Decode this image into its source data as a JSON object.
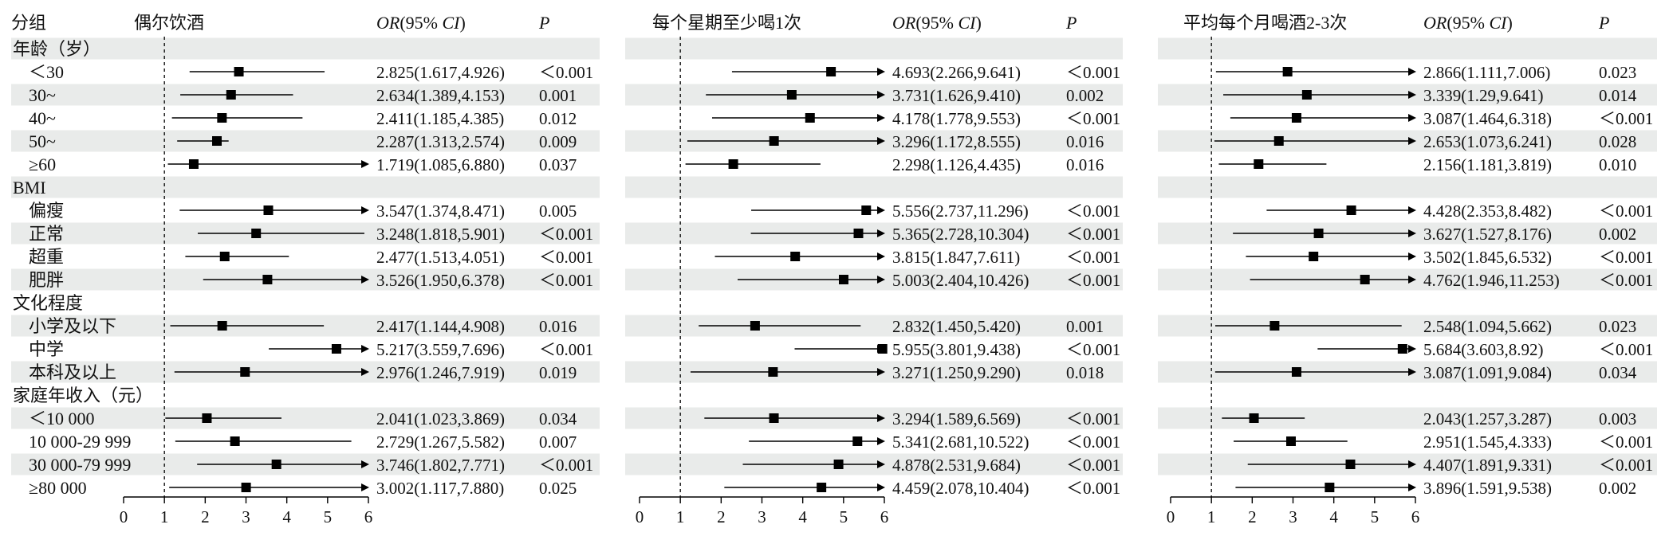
{
  "chart_data": {
    "type": "forest",
    "row_label_header": "分组",
    "reference_line": 1,
    "x_ticks": [
      "0",
      "1",
      "2",
      "3",
      "4",
      "5",
      "6"
    ],
    "xlim": [
      0,
      6
    ],
    "column_headers": {
      "or_prefix": "OR",
      "or_mid": "(95% ",
      "or_ci": "CI",
      "or_suffix": ")",
      "p": "P"
    },
    "rows": [
      {
        "label": "年龄（岁）",
        "type": "group"
      },
      {
        "label": "＜30",
        "type": "item"
      },
      {
        "label": "30~",
        "type": "item"
      },
      {
        "label": "40~",
        "type": "item"
      },
      {
        "label": "50~",
        "type": "item"
      },
      {
        "label": "≥60",
        "type": "item"
      },
      {
        "label": "BMI",
        "type": "group"
      },
      {
        "label": "偏瘦",
        "type": "item"
      },
      {
        "label": "正常",
        "type": "item"
      },
      {
        "label": "超重",
        "type": "item"
      },
      {
        "label": "肥胖",
        "type": "item"
      },
      {
        "label": "文化程度",
        "type": "group"
      },
      {
        "label": "小学及以下",
        "type": "item"
      },
      {
        "label": "中学",
        "type": "item"
      },
      {
        "label": "本科及以上",
        "type": "item"
      },
      {
        "label": "家庭年收入（元）",
        "type": "group"
      },
      {
        "label": "＜10 000",
        "type": "item"
      },
      {
        "label": "10 000-29 999",
        "type": "item"
      },
      {
        "label": "30 000-79 999",
        "type": "item"
      },
      {
        "label": "≥80 000",
        "type": "item"
      }
    ],
    "panels": [
      {
        "title": "偶尔饮酒",
        "estimates": [
          {
            "or": 2.825,
            "lo": 1.617,
            "hi": 4.926,
            "text": "2.825(1.617,4.926)",
            "p": "＜0.001"
          },
          {
            "or": 2.634,
            "lo": 1.389,
            "hi": 4.153,
            "text": "2.634(1.389,4.153)",
            "p": "0.001"
          },
          {
            "or": 2.411,
            "lo": 1.185,
            "hi": 4.385,
            "text": "2.411(1.185,4.385)",
            "p": "0.012"
          },
          {
            "or": 2.287,
            "lo": 1.313,
            "hi": 2.574,
            "text": "2.287(1.313,2.574)",
            "p": "0.009"
          },
          {
            "or": 1.719,
            "lo": 1.085,
            "hi": 6.88,
            "text": "1.719(1.085,6.880)",
            "p": "0.037"
          },
          {
            "or": 3.547,
            "lo": 1.374,
            "hi": 8.471,
            "text": "3.547(1.374,8.471)",
            "p": "0.005"
          },
          {
            "or": 3.248,
            "lo": 1.818,
            "hi": 5.901,
            "text": "3.248(1.818,5.901)",
            "p": "＜0.001"
          },
          {
            "or": 2.477,
            "lo": 1.513,
            "hi": 4.051,
            "text": "2.477(1.513,4.051)",
            "p": "＜0.001"
          },
          {
            "or": 3.526,
            "lo": 1.95,
            "hi": 6.378,
            "text": "3.526(1.950,6.378)",
            "p": "＜0.001"
          },
          {
            "or": 2.417,
            "lo": 1.144,
            "hi": 4.908,
            "text": "2.417(1.144,4.908)",
            "p": "0.016"
          },
          {
            "or": 5.217,
            "lo": 3.559,
            "hi": 7.696,
            "text": "5.217(3.559,7.696)",
            "p": "＜0.001"
          },
          {
            "or": 2.976,
            "lo": 1.246,
            "hi": 7.919,
            "text": "2.976(1.246,7.919)",
            "p": "0.019"
          },
          {
            "or": 2.041,
            "lo": 1.023,
            "hi": 3.869,
            "text": "2.041(1.023,3.869)",
            "p": "0.034"
          },
          {
            "or": 2.729,
            "lo": 1.267,
            "hi": 5.582,
            "text": "2.729(1.267,5.582)",
            "p": "0.007"
          },
          {
            "or": 3.746,
            "lo": 1.802,
            "hi": 7.771,
            "text": "3.746(1.802,7.771)",
            "p": "＜0.001"
          },
          {
            "or": 3.002,
            "lo": 1.117,
            "hi": 7.88,
            "text": "3.002(1.117,7.880)",
            "p": "0.025"
          }
        ]
      },
      {
        "title": "每个星期至少喝1次",
        "estimates": [
          {
            "or": 4.693,
            "lo": 2.266,
            "hi": 9.641,
            "text": "4.693(2.266,9.641)",
            "p": "＜0.001"
          },
          {
            "or": 3.731,
            "lo": 1.626,
            "hi": 9.41,
            "text": "3.731(1.626,9.410)",
            "p": "0.002"
          },
          {
            "or": 4.178,
            "lo": 1.778,
            "hi": 9.553,
            "text": "4.178(1.778,9.553)",
            "p": "＜0.001"
          },
          {
            "or": 3.296,
            "lo": 1.172,
            "hi": 8.555,
            "text": "3.296(1.172,8.555)",
            "p": "0.016"
          },
          {
            "or": 2.298,
            "lo": 1.126,
            "hi": 4.435,
            "text": "2.298(1.126,4.435)",
            "p": "0.016"
          },
          {
            "or": 5.556,
            "lo": 2.737,
            "hi": 11.296,
            "text": "5.556(2.737,11.296)",
            "p": "＜0.001"
          },
          {
            "or": 5.365,
            "lo": 2.728,
            "hi": 10.304,
            "text": "5.365(2.728,10.304)",
            "p": "＜0.001"
          },
          {
            "or": 3.815,
            "lo": 1.847,
            "hi": 7.611,
            "text": "3.815(1.847,7.611)",
            "p": "＜0.001"
          },
          {
            "or": 5.003,
            "lo": 2.404,
            "hi": 10.426,
            "text": "5.003(2.404,10.426)",
            "p": "＜0.001"
          },
          {
            "or": 2.832,
            "lo": 1.45,
            "hi": 5.42,
            "text": "2.832(1.450,5.420)",
            "p": "0.001"
          },
          {
            "or": 5.955,
            "lo": 3.801,
            "hi": 9.438,
            "text": "5.955(3.801,9.438)",
            "p": "＜0.001"
          },
          {
            "or": 3.271,
            "lo": 1.25,
            "hi": 9.29,
            "text": "3.271(1.250,9.290)",
            "p": "0.018"
          },
          {
            "or": 3.294,
            "lo": 1.589,
            "hi": 6.569,
            "text": "3.294(1.589,6.569)",
            "p": "＜0.001"
          },
          {
            "or": 5.341,
            "lo": 2.681,
            "hi": 10.522,
            "text": "5.341(2.681,10.522)",
            "p": "＜0.001"
          },
          {
            "or": 4.878,
            "lo": 2.531,
            "hi": 9.684,
            "text": "4.878(2.531,9.684)",
            "p": "＜0.001"
          },
          {
            "or": 4.459,
            "lo": 2.078,
            "hi": 10.404,
            "text": "4.459(2.078,10.404)",
            "p": "＜0.001"
          }
        ]
      },
      {
        "title": "平均每个月喝酒2-3次",
        "estimates": [
          {
            "or": 2.866,
            "lo": 1.111,
            "hi": 7.006,
            "text": "2.866(1.111,7.006)",
            "p": "0.023"
          },
          {
            "or": 3.339,
            "lo": 1.29,
            "hi": 9.641,
            "text": "3.339(1.29,9.641)",
            "p": "0.014"
          },
          {
            "or": 3.087,
            "lo": 1.464,
            "hi": 6.318,
            "text": "3.087(1.464,6.318)",
            "p": "＜0.001"
          },
          {
            "or": 2.653,
            "lo": 1.073,
            "hi": 6.241,
            "text": "2.653(1.073,6.241)",
            "p": "0.028"
          },
          {
            "or": 2.156,
            "lo": 1.181,
            "hi": 3.819,
            "text": "2.156(1.181,3.819)",
            "p": "0.010"
          },
          {
            "or": 4.428,
            "lo": 2.353,
            "hi": 8.482,
            "text": "4.428(2.353,8.482)",
            "p": "＜0.001"
          },
          {
            "or": 3.627,
            "lo": 1.527,
            "hi": 8.176,
            "text": "3.627(1.527,8.176)",
            "p": "0.002"
          },
          {
            "or": 3.502,
            "lo": 1.845,
            "hi": 6.532,
            "text": "3.502(1.845,6.532)",
            "p": "＜0.001"
          },
          {
            "or": 4.762,
            "lo": 1.946,
            "hi": 11.253,
            "text": "4.762(1.946,11.253)",
            "p": "＜0.001"
          },
          {
            "or": 2.548,
            "lo": 1.094,
            "hi": 5.662,
            "text": "2.548(1.094,5.662)",
            "p": "0.023"
          },
          {
            "or": 5.684,
            "lo": 3.603,
            "hi": 8.92,
            "text": "5.684(3.603,8.92)",
            "p": "＜0.001"
          },
          {
            "or": 3.087,
            "lo": 1.091,
            "hi": 9.084,
            "text": "3.087(1.091,9.084)",
            "p": "0.034"
          },
          {
            "or": 2.043,
            "lo": 1.257,
            "hi": 3.287,
            "text": "2.043(1.257,3.287)",
            "p": "0.003"
          },
          {
            "or": 2.951,
            "lo": 1.545,
            "hi": 4.333,
            "text": "2.951(1.545,4.333)",
            "p": "＜0.001"
          },
          {
            "or": 4.407,
            "lo": 1.891,
            "hi": 9.331,
            "text": "4.407(1.891,9.331)",
            "p": "＜0.001"
          },
          {
            "or": 3.896,
            "lo": 1.591,
            "hi": 9.538,
            "text": "3.896(1.591,9.538)",
            "p": "0.002"
          }
        ]
      }
    ]
  }
}
